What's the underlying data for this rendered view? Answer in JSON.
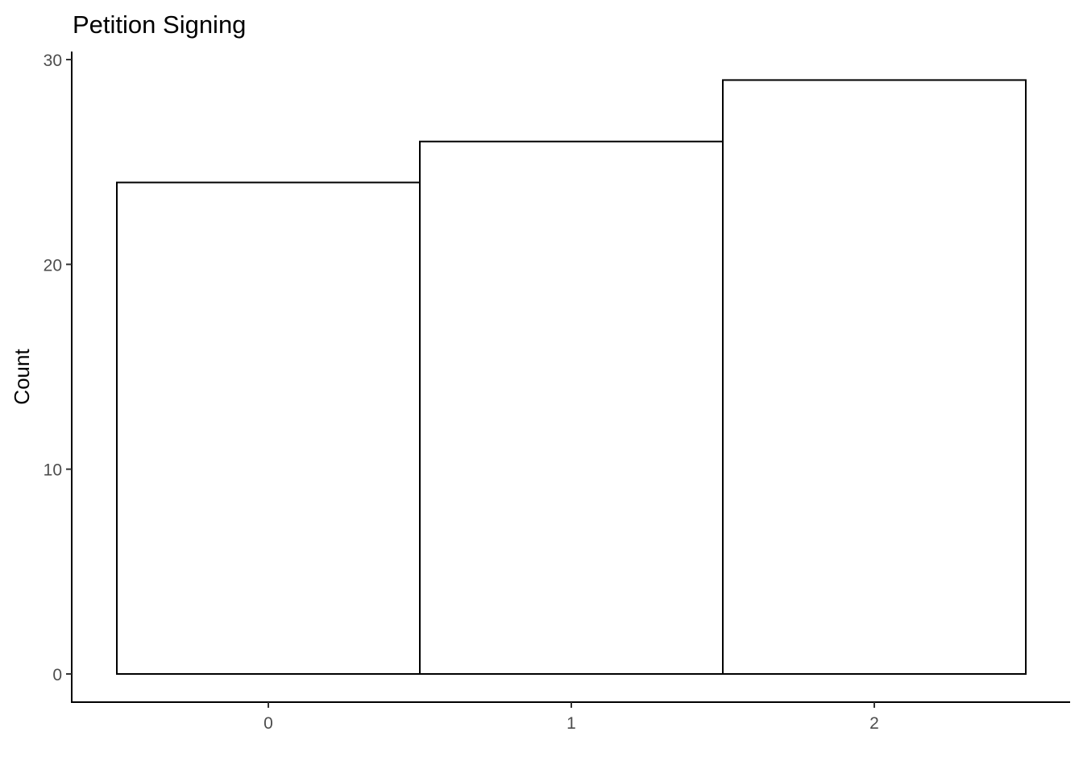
{
  "chart_data": {
    "type": "bar",
    "title": "Petition Signing",
    "xlabel": "",
    "ylabel": "Count",
    "categories": [
      "0",
      "1",
      "2"
    ],
    "values": [
      24,
      26,
      29
    ],
    "ylim": [
      0,
      30
    ],
    "yticks": [
      0,
      10,
      20,
      30
    ],
    "grid": false,
    "legend": "none",
    "colors": {
      "bar_fill": "#ffffff",
      "bar_stroke": "#000000",
      "axis": "#000000",
      "tick_text": "#4d4d4d"
    }
  }
}
